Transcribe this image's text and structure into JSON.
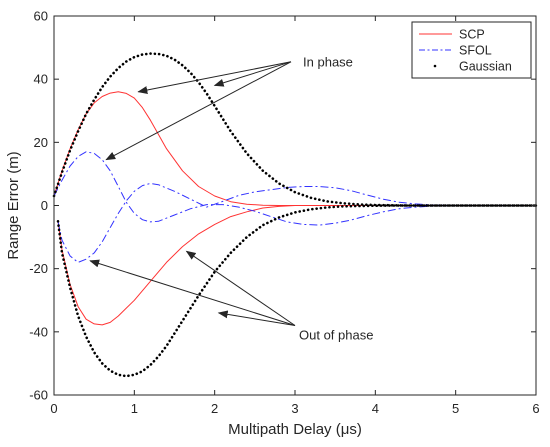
{
  "chart_data": {
    "type": "line",
    "title": "",
    "xlabel": "Multipath Delay (μs)",
    "ylabel": "Range Error (m)",
    "xlim": [
      0,
      6
    ],
    "ylim": [
      -60,
      60
    ],
    "xticks": [
      "0",
      "1",
      "2",
      "3",
      "4",
      "5",
      "6"
    ],
    "yticks": [
      "-60",
      "-40",
      "-20",
      "0",
      "20",
      "40",
      "60"
    ],
    "grid": false,
    "legend_position": "top-right",
    "colors": {
      "SCP": "#ff3333",
      "SFOL": "#3333ff",
      "Gaussian": "#000000",
      "axes": "#262626"
    },
    "series": [
      {
        "name": "SCP",
        "style": "solid",
        "x": [
          0,
          0.1,
          0.2,
          0.3,
          0.4,
          0.5,
          0.6,
          0.7,
          0.8,
          0.9,
          1.0,
          1.1,
          1.2,
          1.3,
          1.4,
          1.6,
          1.8,
          2.0,
          2.2,
          2.4,
          2.6,
          2.8,
          3.0,
          6.0
        ],
        "y": [
          3,
          11,
          18,
          24,
          29,
          32.5,
          34.5,
          35.6,
          36,
          35.5,
          34,
          31,
          27,
          22.5,
          18,
          11,
          6,
          3,
          1.2,
          0.4,
          0.1,
          0,
          0,
          0
        ]
      },
      {
        "name": "SCP",
        "style": "solid",
        "x": [
          0.05,
          0.1,
          0.2,
          0.3,
          0.4,
          0.5,
          0.6,
          0.7,
          0.8,
          1.0,
          1.2,
          1.4,
          1.6,
          1.8,
          2.0,
          2.2,
          2.4,
          2.6,
          2.8,
          3.0,
          6.0
        ],
        "y": [
          -5,
          -14,
          -25,
          -32,
          -36,
          -37.5,
          -37.8,
          -37,
          -35,
          -30,
          -24,
          -18,
          -13,
          -9,
          -6,
          -3.5,
          -2,
          -0.8,
          -0.3,
          0,
          0
        ]
      },
      {
        "name": "SFOL",
        "style": "dashdot",
        "x": [
          0,
          0.1,
          0.2,
          0.3,
          0.4,
          0.5,
          0.6,
          0.7,
          0.8,
          0.9,
          1.0,
          1.1,
          1.2,
          1.3,
          1.5,
          1.7,
          1.9,
          2.1,
          2.3,
          2.5,
          2.7,
          2.9,
          3.1,
          3.3,
          3.5,
          3.7,
          3.9,
          4.1,
          4.3,
          4.5,
          4.7,
          5.0,
          6.0
        ],
        "y": [
          3,
          8,
          12.5,
          15.5,
          17,
          16.5,
          14.5,
          11,
          6,
          1,
          -2.5,
          -4.5,
          -5.2,
          -5,
          -3,
          -1,
          0.3,
          0.3,
          -0.5,
          -1.8,
          -3.5,
          -5.2,
          -6,
          -6.2,
          -5.6,
          -4.6,
          -3.2,
          -2,
          -1,
          -0.5,
          -0.2,
          0,
          0
        ]
      },
      {
        "name": "SFOL",
        "style": "dashdot",
        "x": [
          0.05,
          0.1,
          0.2,
          0.3,
          0.4,
          0.5,
          0.6,
          0.7,
          0.8,
          0.9,
          1.0,
          1.1,
          1.2,
          1.3,
          1.5,
          1.7,
          1.9,
          2.1,
          2.3,
          2.5,
          2.7,
          2.9,
          3.1,
          3.3,
          3.5,
          3.7,
          3.9,
          4.1,
          4.3,
          4.5,
          4.7,
          5.0,
          6.0
        ],
        "y": [
          -5,
          -11,
          -16,
          -18,
          -17,
          -15,
          -11.5,
          -7,
          -2.5,
          1.5,
          4.5,
          6.3,
          7,
          6.6,
          4.5,
          2,
          -0.5,
          1.3,
          3.2,
          4.3,
          5,
          5.7,
          6,
          6,
          5.6,
          4.7,
          3.3,
          2,
          1,
          0.5,
          0.2,
          0,
          0
        ]
      },
      {
        "name": "Gaussian",
        "style": "dotted",
        "x": [
          0,
          0.1,
          0.2,
          0.3,
          0.4,
          0.5,
          0.6,
          0.7,
          0.8,
          0.9,
          1.0,
          1.1,
          1.2,
          1.3,
          1.4,
          1.5,
          1.6,
          1.7,
          1.8,
          1.9,
          2.0,
          2.2,
          2.4,
          2.6,
          2.8,
          3.0,
          3.2,
          3.4,
          3.6,
          3.8,
          4.0,
          4.2,
          4.4,
          4.6,
          4.8,
          5.0,
          5.3,
          6.0
        ],
        "y": [
          3,
          10.5,
          17.5,
          23.5,
          29,
          33.5,
          37.5,
          40.8,
          43.5,
          45.6,
          47,
          47.8,
          48.1,
          48,
          47.4,
          46.2,
          44.4,
          42,
          39,
          35.5,
          31.5,
          23.5,
          16.5,
          11,
          7,
          4.2,
          2.4,
          1.3,
          0.7,
          0.35,
          0.15,
          0.05,
          0,
          0,
          0,
          0,
          0,
          0
        ]
      },
      {
        "name": "Gaussian",
        "style": "dotted",
        "x": [
          0.05,
          0.1,
          0.2,
          0.3,
          0.4,
          0.5,
          0.6,
          0.7,
          0.8,
          0.9,
          1.0,
          1.1,
          1.2,
          1.3,
          1.4,
          1.5,
          1.6,
          1.8,
          2.0,
          2.2,
          2.4,
          2.6,
          2.8,
          3.0,
          3.2,
          3.4,
          3.6,
          3.8,
          4.0,
          4.2,
          4.4,
          4.6,
          5.0,
          6.0
        ],
        "y": [
          -5,
          -15,
          -26,
          -35,
          -41.5,
          -46.5,
          -50,
          -52.3,
          -53.6,
          -54,
          -53.6,
          -52.5,
          -50.5,
          -47.8,
          -44.5,
          -40.5,
          -36.5,
          -28.5,
          -21,
          -15,
          -10,
          -6.2,
          -3.8,
          -2.2,
          -1.2,
          -0.6,
          -0.3,
          -0.15,
          -0.05,
          0,
          0,
          0,
          0,
          0
        ]
      }
    ],
    "legend": [
      {
        "name": "SCP",
        "style": "solid",
        "color": "#ff3333"
      },
      {
        "name": "SFOL",
        "style": "dashdot",
        "color": "#3333ff"
      },
      {
        "name": "Gaussian",
        "style": "dotted",
        "color": "#000000"
      }
    ],
    "annotations": [
      {
        "text": "In phase",
        "label_at": [
          3.1,
          45.5
        ],
        "arrow_from": [
          2.95,
          45.5
        ],
        "arrow_to": [
          [
            1.05,
            36
          ],
          [
            2.0,
            38
          ],
          [
            0.65,
            14.5
          ]
        ]
      },
      {
        "text": "Out of phase",
        "label_at": [
          3.05,
          -41
        ],
        "arrow_from": [
          3.0,
          -38
        ],
        "arrow_to": [
          [
            0.45,
            -17.5
          ],
          [
            1.65,
            -14.5
          ],
          [
            2.05,
            -34
          ]
        ]
      }
    ]
  }
}
